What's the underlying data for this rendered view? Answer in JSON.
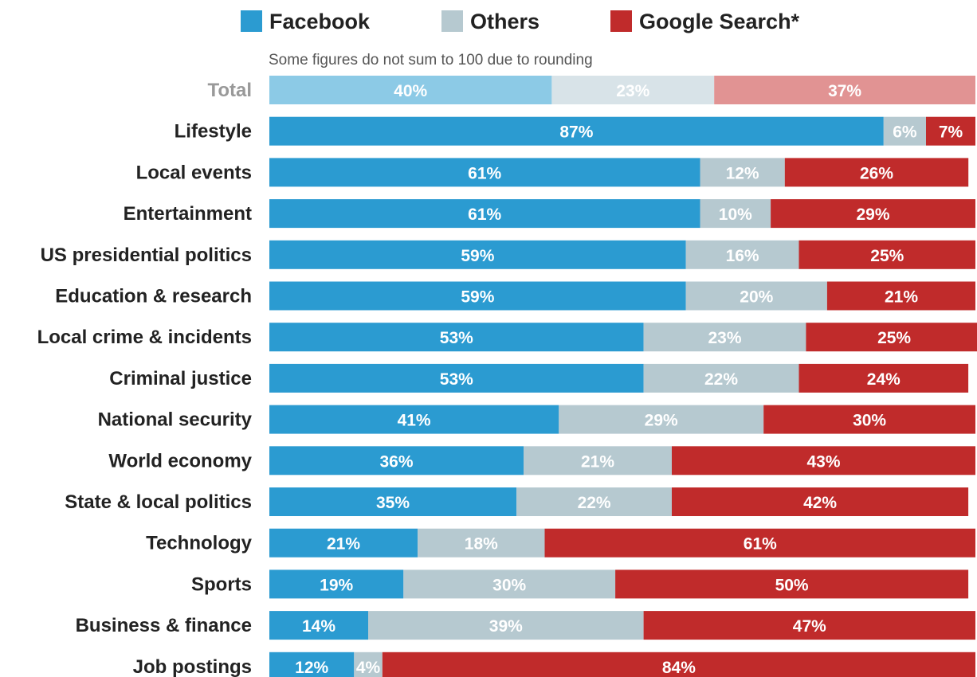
{
  "chart_data": {
    "type": "bar",
    "orientation": "horizontal",
    "stacked": true,
    "title": "",
    "note": "Some figures do not sum to 100 due to rounding",
    "xlabel": "",
    "ylabel": "",
    "xlim": [
      0,
      100
    ],
    "grid": false,
    "legend_position": "top",
    "categories": [
      "Total",
      "Lifestyle",
      "Local events",
      "Entertainment",
      "US presidential politics",
      "Education & research",
      "Local crime & incidents",
      "Criminal justice",
      "National security",
      "World economy",
      "State & local politics",
      "Technology",
      "Sports",
      "Business & finance",
      "Job postings"
    ],
    "series": [
      {
        "name": "Facebook",
        "color": "#2b9bd1",
        "total_color": "#8ccae6",
        "values": [
          40,
          87,
          61,
          61,
          59,
          59,
          53,
          53,
          41,
          36,
          35,
          21,
          19,
          14,
          12
        ]
      },
      {
        "name": "Others",
        "color": "#b6c9d0",
        "total_color": "#d8e3e8",
        "values": [
          23,
          6,
          12,
          10,
          16,
          20,
          23,
          22,
          29,
          21,
          22,
          18,
          30,
          39,
          4
        ]
      },
      {
        "name": "Google Search*",
        "color": "#c02b2b",
        "total_color": "#e19393",
        "values": [
          37,
          7,
          26,
          29,
          25,
          21,
          25,
          24,
          30,
          43,
          42,
          61,
          50,
          47,
          84
        ]
      }
    ]
  }
}
